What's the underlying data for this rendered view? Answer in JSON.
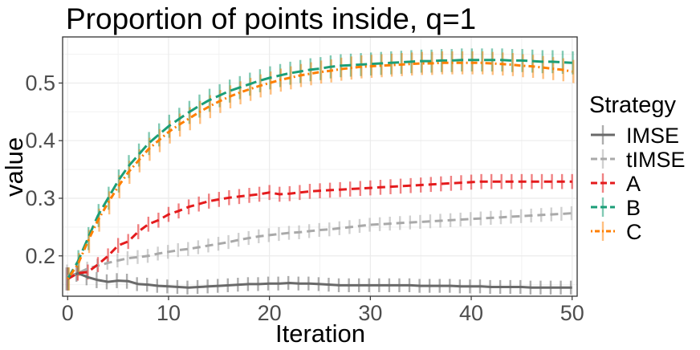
{
  "chart_data": {
    "type": "line",
    "title": "Proportion of points inside, q=1",
    "xlabel": "Iteration",
    "ylabel": "value",
    "xlim": [
      -0.5,
      50.5
    ],
    "ylim": [
      0.13,
      0.58
    ],
    "x_ticks": [
      0,
      10,
      20,
      30,
      40,
      50
    ],
    "x_tick_labels": [
      "0",
      "10",
      "20",
      "30",
      "40",
      "50"
    ],
    "y_ticks": [
      0.2,
      0.3,
      0.4,
      0.5
    ],
    "y_tick_labels": [
      "0.2",
      "0.3",
      "0.4",
      "0.5"
    ],
    "grid": true,
    "error_bars": true,
    "legend": {
      "title": "Strategy",
      "position": "right",
      "entries": [
        {
          "name": "IMSE",
          "color": "#696969",
          "dash": "solid"
        },
        {
          "name": "tIMSE",
          "color": "#a9a9a9",
          "dash": "dashed"
        },
        {
          "name": "A",
          "color": "#e41a1c",
          "dash": "dashed"
        },
        {
          "name": "B",
          "color": "#1b9e77",
          "dash": "longdash"
        },
        {
          "name": "C",
          "color": "#ff7f00",
          "dash": "dotdash"
        }
      ]
    },
    "x": [
      0,
      1,
      2,
      3,
      4,
      5,
      6,
      7,
      8,
      9,
      10,
      11,
      12,
      13,
      14,
      15,
      16,
      17,
      18,
      19,
      20,
      21,
      22,
      23,
      24,
      25,
      26,
      27,
      28,
      29,
      30,
      31,
      32,
      33,
      34,
      35,
      36,
      37,
      38,
      39,
      40,
      41,
      42,
      43,
      44,
      45,
      46,
      47,
      48,
      49,
      50
    ],
    "series": [
      {
        "name": "IMSE",
        "values": [
          0.16,
          0.17,
          0.163,
          0.158,
          0.155,
          0.157,
          0.156,
          0.151,
          0.15,
          0.148,
          0.147,
          0.146,
          0.145,
          0.146,
          0.147,
          0.148,
          0.149,
          0.15,
          0.151,
          0.151,
          0.152,
          0.152,
          0.153,
          0.152,
          0.152,
          0.151,
          0.15,
          0.149,
          0.149,
          0.149,
          0.149,
          0.149,
          0.149,
          0.149,
          0.149,
          0.148,
          0.148,
          0.148,
          0.148,
          0.147,
          0.147,
          0.147,
          0.146,
          0.146,
          0.146,
          0.146,
          0.145,
          0.145,
          0.145,
          0.145,
          0.145
        ],
        "err": [
          0.02,
          0.015,
          0.014,
          0.014,
          0.013,
          0.013,
          0.013,
          0.012,
          0.012,
          0.012,
          0.012,
          0.012,
          0.012,
          0.012,
          0.012,
          0.012,
          0.012,
          0.012,
          0.012,
          0.012,
          0.012,
          0.012,
          0.012,
          0.012,
          0.012,
          0.012,
          0.012,
          0.012,
          0.012,
          0.012,
          0.012,
          0.012,
          0.012,
          0.012,
          0.012,
          0.012,
          0.012,
          0.012,
          0.012,
          0.012,
          0.012,
          0.012,
          0.012,
          0.012,
          0.012,
          0.012,
          0.012,
          0.012,
          0.012,
          0.012,
          0.012
        ]
      },
      {
        "name": "tIMSE",
        "values": [
          0.165,
          0.17,
          0.178,
          0.183,
          0.188,
          0.192,
          0.196,
          0.198,
          0.2,
          0.204,
          0.207,
          0.21,
          0.212,
          0.215,
          0.218,
          0.221,
          0.224,
          0.228,
          0.231,
          0.234,
          0.236,
          0.238,
          0.24,
          0.241,
          0.243,
          0.245,
          0.246,
          0.248,
          0.25,
          0.252,
          0.254,
          0.255,
          0.256,
          0.257,
          0.258,
          0.259,
          0.26,
          0.261,
          0.262,
          0.263,
          0.264,
          0.265,
          0.266,
          0.267,
          0.268,
          0.269,
          0.27,
          0.271,
          0.272,
          0.273,
          0.274
        ],
        "err": [
          0.02,
          0.012,
          0.012,
          0.012,
          0.012,
          0.012,
          0.012,
          0.012,
          0.012,
          0.012,
          0.012,
          0.012,
          0.012,
          0.012,
          0.012,
          0.012,
          0.012,
          0.012,
          0.012,
          0.012,
          0.012,
          0.012,
          0.012,
          0.012,
          0.012,
          0.012,
          0.012,
          0.012,
          0.012,
          0.012,
          0.012,
          0.012,
          0.012,
          0.012,
          0.012,
          0.012,
          0.012,
          0.012,
          0.012,
          0.012,
          0.012,
          0.012,
          0.012,
          0.012,
          0.012,
          0.012,
          0.012,
          0.012,
          0.012,
          0.012,
          0.012
        ]
      },
      {
        "name": "A",
        "values": [
          0.16,
          0.17,
          0.172,
          0.185,
          0.2,
          0.218,
          0.225,
          0.242,
          0.255,
          0.262,
          0.272,
          0.278,
          0.285,
          0.29,
          0.295,
          0.298,
          0.301,
          0.303,
          0.305,
          0.307,
          0.31,
          0.307,
          0.308,
          0.31,
          0.312,
          0.313,
          0.314,
          0.315,
          0.316,
          0.317,
          0.318,
          0.319,
          0.32,
          0.321,
          0.322,
          0.323,
          0.324,
          0.325,
          0.326,
          0.327,
          0.328,
          0.329,
          0.329,
          0.329,
          0.329,
          0.329,
          0.329,
          0.329,
          0.329,
          0.329,
          0.329
        ],
        "err": [
          0.02,
          0.013,
          0.013,
          0.013,
          0.013,
          0.013,
          0.013,
          0.013,
          0.013,
          0.013,
          0.013,
          0.013,
          0.013,
          0.013,
          0.013,
          0.013,
          0.013,
          0.013,
          0.013,
          0.013,
          0.013,
          0.013,
          0.013,
          0.013,
          0.013,
          0.013,
          0.013,
          0.013,
          0.013,
          0.013,
          0.013,
          0.013,
          0.013,
          0.013,
          0.013,
          0.013,
          0.013,
          0.013,
          0.013,
          0.013,
          0.013,
          0.013,
          0.013,
          0.013,
          0.013,
          0.013,
          0.013,
          0.013,
          0.013,
          0.013,
          0.013
        ]
      },
      {
        "name": "B",
        "values": [
          0.16,
          0.19,
          0.23,
          0.27,
          0.3,
          0.33,
          0.355,
          0.375,
          0.395,
          0.41,
          0.425,
          0.437,
          0.449,
          0.46,
          0.47,
          0.478,
          0.486,
          0.492,
          0.498,
          0.504,
          0.509,
          0.513,
          0.517,
          0.52,
          0.523,
          0.525,
          0.528,
          0.53,
          0.531,
          0.532,
          0.533,
          0.534,
          0.535,
          0.536,
          0.537,
          0.538,
          0.538,
          0.539,
          0.539,
          0.54,
          0.54,
          0.54,
          0.54,
          0.54,
          0.539,
          0.539,
          0.538,
          0.537,
          0.537,
          0.536,
          0.535
        ],
        "err": [
          0.02,
          0.02,
          0.02,
          0.02,
          0.02,
          0.02,
          0.02,
          0.02,
          0.02,
          0.02,
          0.02,
          0.02,
          0.02,
          0.02,
          0.02,
          0.02,
          0.02,
          0.02,
          0.02,
          0.02,
          0.02,
          0.02,
          0.02,
          0.02,
          0.02,
          0.02,
          0.02,
          0.02,
          0.02,
          0.02,
          0.02,
          0.02,
          0.02,
          0.02,
          0.02,
          0.02,
          0.02,
          0.02,
          0.02,
          0.02,
          0.02,
          0.02,
          0.02,
          0.02,
          0.02,
          0.02,
          0.02,
          0.02,
          0.02,
          0.02,
          0.02
        ]
      },
      {
        "name": "C",
        "values": [
          0.16,
          0.185,
          0.225,
          0.262,
          0.292,
          0.32,
          0.345,
          0.365,
          0.385,
          0.4,
          0.415,
          0.427,
          0.438,
          0.449,
          0.459,
          0.468,
          0.476,
          0.483,
          0.489,
          0.495,
          0.5,
          0.505,
          0.509,
          0.513,
          0.516,
          0.519,
          0.521,
          0.524,
          0.526,
          0.528,
          0.529,
          0.53,
          0.531,
          0.532,
          0.533,
          0.534,
          0.534,
          0.535,
          0.535,
          0.535,
          0.535,
          0.535,
          0.534,
          0.533,
          0.532,
          0.53,
          0.529,
          0.527,
          0.525,
          0.523,
          0.52
        ],
        "err": [
          0.02,
          0.02,
          0.02,
          0.02,
          0.02,
          0.02,
          0.02,
          0.02,
          0.02,
          0.02,
          0.02,
          0.02,
          0.02,
          0.02,
          0.02,
          0.02,
          0.02,
          0.02,
          0.02,
          0.02,
          0.02,
          0.02,
          0.02,
          0.02,
          0.02,
          0.02,
          0.02,
          0.02,
          0.02,
          0.02,
          0.02,
          0.02,
          0.02,
          0.02,
          0.02,
          0.02,
          0.02,
          0.02,
          0.02,
          0.02,
          0.02,
          0.02,
          0.02,
          0.02,
          0.02,
          0.02,
          0.02,
          0.02,
          0.02,
          0.02,
          0.02
        ]
      }
    ]
  }
}
